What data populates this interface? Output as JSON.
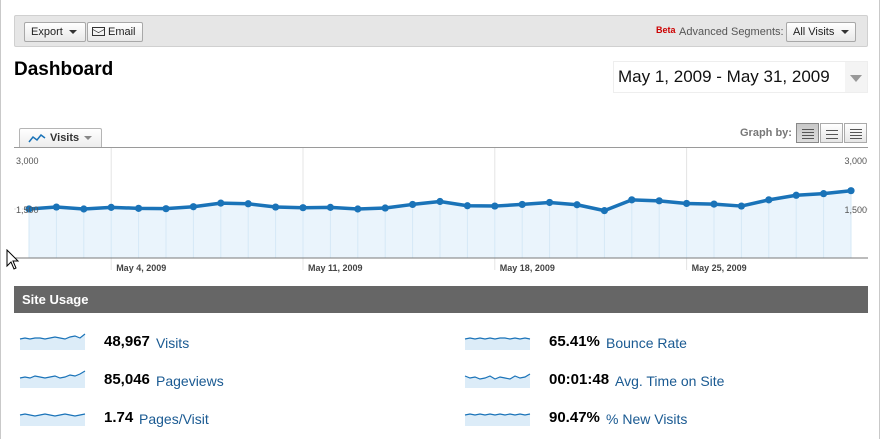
{
  "toolbar": {
    "export_label": "Export",
    "email_label": "Email",
    "beta_label": "Beta",
    "segments_label": "Advanced Segments:",
    "segments_value": "All Visits"
  },
  "page": {
    "title": "Dashboard",
    "date_range": "May 1, 2009 - May 31, 2009"
  },
  "graph_controls": {
    "metric_tab": "Visits",
    "graph_by_label": "Graph by:",
    "graph_by_options": [
      "day",
      "week",
      "month"
    ],
    "graph_by_selected": "day"
  },
  "chart_data": {
    "type": "area",
    "series": [
      {
        "name": "Visits",
        "values": [
          1500,
          1560,
          1500,
          1550,
          1520,
          1510,
          1570,
          1680,
          1660,
          1560,
          1540,
          1550,
          1500,
          1530,
          1640,
          1730,
          1600,
          1590,
          1640,
          1700,
          1630,
          1450,
          1780,
          1750,
          1670,
          1650,
          1590,
          1780,
          1920,
          1970,
          2060
        ]
      }
    ],
    "x": [
      "May 1",
      "May 2",
      "May 3",
      "May 4",
      "May 5",
      "May 6",
      "May 7",
      "May 8",
      "May 9",
      "May 10",
      "May 11",
      "May 12",
      "May 13",
      "May 14",
      "May 15",
      "May 16",
      "May 17",
      "May 18",
      "May 19",
      "May 20",
      "May 21",
      "May 22",
      "May 23",
      "May 24",
      "May 25",
      "May 26",
      "May 27",
      "May 28",
      "May 29",
      "May 30",
      "May 31"
    ],
    "x_tick_labels": [
      "May 4, 2009",
      "May 11, 2009",
      "May 18, 2009",
      "May 25, 2009"
    ],
    "y_tick_labels": [
      "3,000",
      "1,500"
    ],
    "ylim": [
      0,
      3000
    ],
    "grid": true,
    "colors": {
      "line": "#1a73b8",
      "fill": "#eaf4fc"
    }
  },
  "site_usage": {
    "title": "Site Usage",
    "metrics": [
      {
        "value": "48,967",
        "label": "Visits"
      },
      {
        "value": "85,046",
        "label": "Pageviews"
      },
      {
        "value": "1.74",
        "label": "Pages/Visit"
      },
      {
        "value": "65.41%",
        "label": "Bounce Rate"
      },
      {
        "value": "00:01:48",
        "label": "Avg. Time on Site"
      },
      {
        "value": "90.47%",
        "label": "% New Visits"
      }
    ]
  }
}
